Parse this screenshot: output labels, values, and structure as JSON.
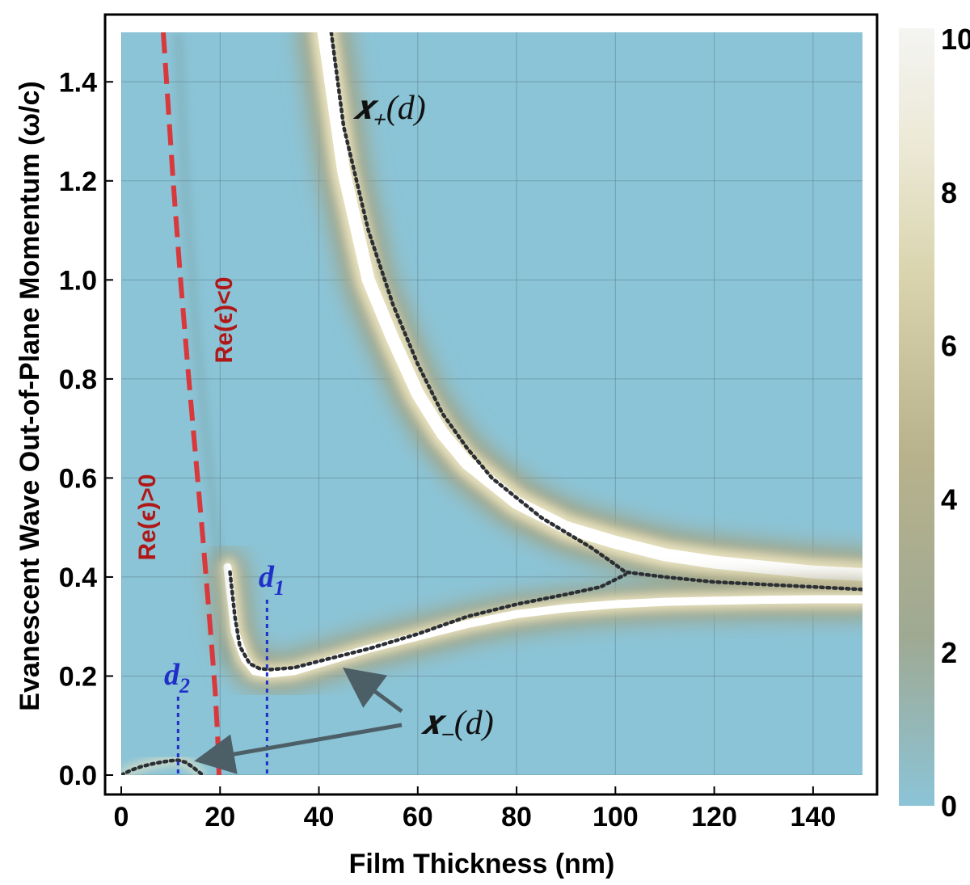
{
  "chart_data": {
    "type": "heatmap",
    "title": "",
    "xlabel": "Film Thickness (nm)",
    "ylabel": "Evanescent Wave Out-of-Plane Momentum (ω/c)",
    "xlim": [
      0,
      150
    ],
    "ylim": [
      0,
      1.5
    ],
    "x_ticks": [
      "0",
      "20",
      "40",
      "60",
      "80",
      "100",
      "120",
      "140"
    ],
    "y_ticks": [
      "0.0",
      "0.2",
      "0.4",
      "0.6",
      "0.8",
      "1.0",
      "1.2",
      "1.4"
    ],
    "colorbar": {
      "range": [
        0,
        10
      ],
      "ticks": [
        "0",
        "2",
        "4",
        "6",
        "8",
        "10"
      ],
      "colors": [
        "#8bc4d7",
        "#9fa992",
        "#c9c49a",
        "#ece9d6",
        "#f4f4f2"
      ]
    },
    "grid": true,
    "bright_band_upper": {
      "x": [
        41,
        45,
        50,
        55,
        60,
        65,
        70,
        80,
        90,
        100,
        110,
        120,
        130,
        140,
        150
      ],
      "y": [
        1.5,
        1.22,
        1.0,
        0.88,
        0.77,
        0.69,
        0.63,
        0.55,
        0.5,
        0.47,
        0.445,
        0.43,
        0.42,
        0.41,
        0.405
      ]
    },
    "bright_band_lower": {
      "x": [
        21.5,
        23,
        25,
        27,
        30,
        35,
        40,
        50,
        60,
        70,
        80,
        90,
        100,
        110,
        120,
        130,
        140,
        150
      ],
      "y": [
        0.42,
        0.29,
        0.235,
        0.21,
        0.205,
        0.21,
        0.225,
        0.255,
        0.28,
        0.305,
        0.325,
        0.337,
        0.345,
        0.35,
        0.352,
        0.354,
        0.355,
        0.355
      ]
    },
    "faint_band": {
      "x": [
        11.5,
        13,
        15,
        17,
        19,
        20.5,
        21
      ],
      "y": [
        1.5,
        1.18,
        0.91,
        0.7,
        0.5,
        0.33,
        0.22
      ]
    },
    "series": [
      {
        "name": "x+(d)",
        "style": "dotted",
        "color": "#2b2f33",
        "x": [
          42.5,
          45,
          50,
          55,
          60,
          65,
          70,
          75,
          80,
          85,
          90,
          95,
          100,
          102,
          110,
          120,
          130,
          140,
          150,
          152
        ],
        "y": [
          1.5,
          1.31,
          1.1,
          0.95,
          0.83,
          0.73,
          0.66,
          0.6,
          0.56,
          0.52,
          0.49,
          0.46,
          0.425,
          0.41,
          0.4,
          0.39,
          0.385,
          0.38,
          0.375,
          0.372
        ]
      },
      {
        "name": "x−(d)",
        "style": "dotted",
        "color": "#2b2f33",
        "x": [
          22,
          23,
          24,
          26,
          28,
          30,
          35,
          40,
          50,
          60,
          70,
          80,
          90,
          97,
          102
        ],
        "y": [
          0.41,
          0.32,
          0.26,
          0.225,
          0.215,
          0.213,
          0.217,
          0.23,
          0.255,
          0.285,
          0.32,
          0.345,
          0.365,
          0.38,
          0.405
        ]
      },
      {
        "name": "x−(d) small-d branch",
        "style": "dotted",
        "color": "#2b2f33",
        "x": [
          0,
          2,
          4,
          6,
          8,
          10,
          11.5,
          13,
          14.5,
          16.5
        ],
        "y": [
          0.0,
          0.01,
          0.017,
          0.022,
          0.026,
          0.029,
          0.03,
          0.026,
          0.016,
          0.0
        ]
      },
      {
        "name": "Re(ε)=0 boundary",
        "style": "dashed",
        "color": "#d8393c",
        "x": [
          8.5,
          9.5,
          10.5,
          12,
          13.5,
          15,
          16.5,
          18,
          19,
          19.5,
          19.8
        ],
        "y": [
          1.5,
          1.35,
          1.2,
          1.0,
          0.82,
          0.65,
          0.48,
          0.3,
          0.17,
          0.08,
          0.0
        ]
      }
    ],
    "annotations": {
      "x_plus": "𝒙₊(d)",
      "x_minus": "𝒙₋(d)",
      "re_pos": "Re(ϵ)>0",
      "re_neg": "Re(ϵ)<0",
      "d1": "d",
      "d1_sub": "1",
      "d2": "d",
      "d2_sub": "2",
      "d1_value": 29.5,
      "d2_value": 11.5
    }
  }
}
